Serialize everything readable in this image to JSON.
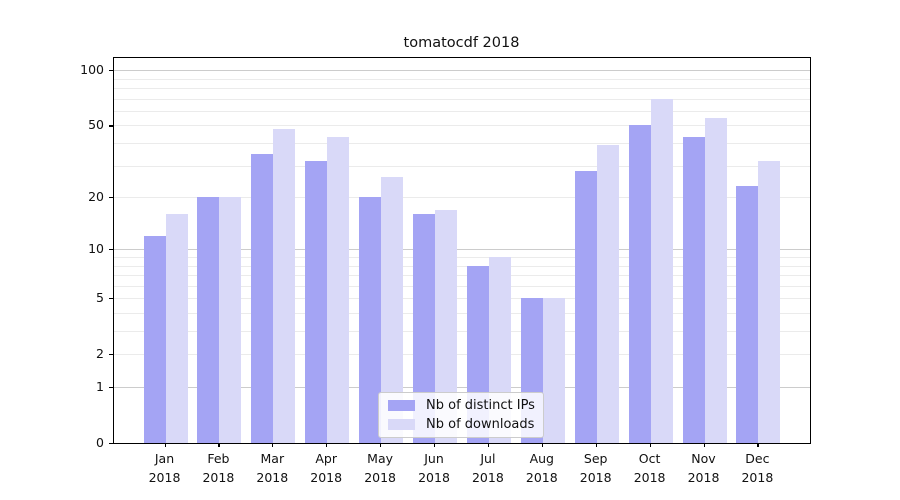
{
  "chart_data": {
    "type": "bar",
    "title": "tomatocdf 2018",
    "categories": [
      "Jan",
      "Feb",
      "Mar",
      "Apr",
      "May",
      "Jun",
      "Jul",
      "Aug",
      "Sep",
      "Oct",
      "Nov",
      "Dec"
    ],
    "x_sublabel": "2018",
    "series": [
      {
        "name": "Nb of distinct IPs",
        "color": "#a4a4f4",
        "values": [
          12,
          20,
          35,
          32,
          20,
          16,
          8,
          5,
          28,
          50,
          43,
          23
        ]
      },
      {
        "name": "Nb of downloads",
        "color": "#d9d9f8",
        "values": [
          16,
          20,
          48,
          43,
          26,
          17,
          9,
          5,
          39,
          70,
          55,
          32
        ]
      }
    ],
    "y_axis": {
      "scale": "log1p",
      "tick_values": [
        100,
        50,
        20,
        10,
        5,
        2,
        1,
        0
      ],
      "major_gridline_values": [
        1,
        10,
        100
      ],
      "minor_gridline_values": [
        2,
        3,
        4,
        5,
        6,
        7,
        8,
        9,
        20,
        30,
        40,
        50,
        60,
        70,
        80,
        90
      ],
      "range": [
        0,
        110
      ]
    },
    "legend": {
      "position": "lower center"
    },
    "grid": true,
    "colors": {
      "major_grid": "#cccccc",
      "minor_grid": "#ebebeb",
      "axis": "#000000",
      "background": "#ffffff"
    }
  }
}
